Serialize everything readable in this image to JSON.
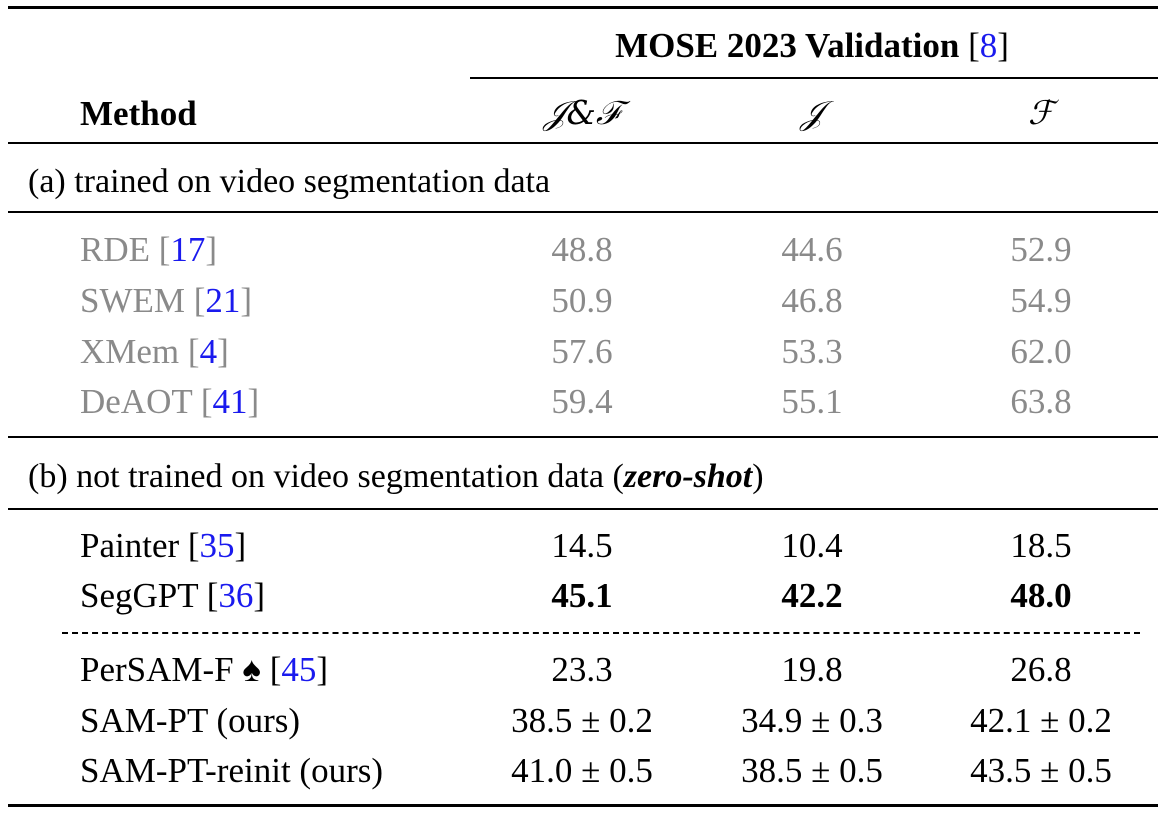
{
  "table": {
    "header": {
      "benchmark_label": "MOSE 2023 Validation",
      "benchmark_cite": "8",
      "method_label": "Method",
      "col_jf": "𝒥&ℱ",
      "col_j": "𝒥",
      "col_f": "ℱ"
    },
    "section_a": {
      "label": "(a) trained on video segmentation data",
      "rows": [
        {
          "method": "RDE",
          "cite": "17",
          "jf": "48.8",
          "j": "44.6",
          "f": "52.9"
        },
        {
          "method": "SWEM",
          "cite": "21",
          "jf": "50.9",
          "j": "46.8",
          "f": "54.9"
        },
        {
          "method": "XMem",
          "cite": "4",
          "jf": "57.6",
          "j": "53.3",
          "f": "62.0"
        },
        {
          "method": "DeAOT",
          "cite": "41",
          "jf": "59.4",
          "j": "55.1",
          "f": "63.8"
        }
      ]
    },
    "section_b": {
      "label_prefix": "(b) not trained on video segmentation data (",
      "label_emph": "zero-shot",
      "label_suffix": ")",
      "rows_top": [
        {
          "method": "Painter",
          "cite": "35",
          "jf": "14.5",
          "j": "10.4",
          "f": "18.5"
        },
        {
          "method": "SegGPT",
          "cite": "36",
          "jf": "45.1",
          "j": "42.2",
          "f": "48.0"
        }
      ],
      "rows_bottom": [
        {
          "method": "PerSAM-F ♠",
          "cite": "45",
          "jf": "23.3",
          "j": "19.8",
          "f": "26.8"
        },
        {
          "method": "SAM-PT (ours)",
          "cite": "",
          "jf": "38.5 ± 0.2",
          "j": "34.9 ± 0.3",
          "f": "42.1 ± 0.2"
        },
        {
          "method": "SAM-PT-reinit (ours)",
          "cite": "",
          "jf": "41.0 ± 0.5",
          "j": "38.5 ± 0.5",
          "f": "43.5 ± 0.5"
        }
      ]
    }
  }
}
